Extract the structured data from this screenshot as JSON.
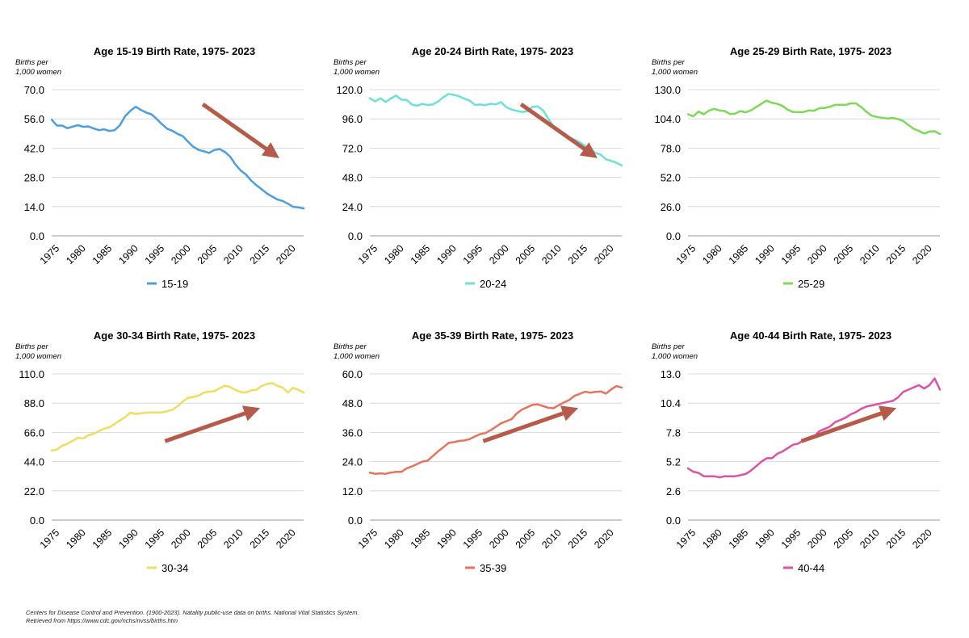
{
  "chart_data": [
    {
      "type": "line",
      "title": "Age 15-19 Birth Rate, 1975- 2023",
      "ylabel": "Births per 1,000 women",
      "ylabel_lines": [
        "Births per",
        "1,000 women"
      ],
      "xlabel": "",
      "ylim": [
        0,
        70
      ],
      "yticks": [
        "0.0",
        "14.0",
        "28.0",
        "42.0",
        "56.0",
        "70.0"
      ],
      "xticks": [
        "1975",
        "1980",
        "1985",
        "1990",
        "1995",
        "2000",
        "2005",
        "2010",
        "2015",
        "2020"
      ],
      "x_start": 1975,
      "x_end": 2023,
      "grid": true,
      "legend": "bottom-center",
      "color": "#4a9ee3",
      "trend_arrow": "down",
      "series": [
        {
          "name": "15-19",
          "x": [
            1975,
            1976,
            1977,
            1978,
            1979,
            1980,
            1981,
            1982,
            1983,
            1984,
            1985,
            1986,
            1987,
            1988,
            1989,
            1990,
            1991,
            1992,
            1993,
            1994,
            1995,
            1996,
            1997,
            1998,
            1999,
            2000,
            2001,
            2002,
            2003,
            2004,
            2005,
            2006,
            2007,
            2008,
            2009,
            2010,
            2011,
            2012,
            2013,
            2014,
            2015,
            2016,
            2017,
            2018,
            2019,
            2020,
            2021,
            2022,
            2023
          ],
          "values": [
            55.6,
            52.8,
            52.8,
            51.5,
            52.3,
            53.0,
            52.2,
            52.4,
            51.4,
            50.6,
            51.0,
            50.2,
            50.6,
            53.0,
            57.3,
            59.9,
            61.8,
            60.3,
            59.0,
            58.2,
            56.0,
            53.5,
            51.3,
            50.3,
            48.8,
            47.7,
            45.0,
            42.6,
            41.1,
            40.5,
            39.7,
            41.1,
            41.5,
            40.2,
            37.9,
            34.2,
            31.3,
            29.4,
            26.5,
            24.2,
            22.3,
            20.3,
            18.8,
            17.4,
            16.7,
            15.4,
            13.9,
            13.6,
            13.1
          ]
        }
      ]
    },
    {
      "type": "line",
      "title": "Age 20-24 Birth Rate, 1975- 2023",
      "ylabel": "Births per 1,000 women",
      "ylabel_lines": [
        "Births per",
        "1,000 women"
      ],
      "xlabel": "",
      "ylim": [
        0,
        120
      ],
      "yticks": [
        "0.0",
        "24.0",
        "48.0",
        "72.0",
        "96.0",
        "120.0"
      ],
      "xticks": [
        "1975",
        "1980",
        "1985",
        "1990",
        "1995",
        "2000",
        "2005",
        "2010",
        "2015",
        "2020"
      ],
      "x_start": 1975,
      "x_end": 2023,
      "grid": true,
      "legend": "bottom-center",
      "color": "#6fe0d3",
      "trend_arrow": "down",
      "series": [
        {
          "name": "20-24",
          "x": [
            1975,
            1976,
            1977,
            1978,
            1979,
            1980,
            1981,
            1982,
            1983,
            1984,
            1985,
            1986,
            1987,
            1988,
            1989,
            1990,
            1991,
            1992,
            1993,
            1994,
            1995,
            1996,
            1997,
            1998,
            1999,
            2000,
            2001,
            2002,
            2003,
            2004,
            2005,
            2006,
            2007,
            2008,
            2009,
            2010,
            2011,
            2012,
            2013,
            2014,
            2015,
            2016,
            2017,
            2018,
            2019,
            2020,
            2021,
            2022,
            2023
          ],
          "values": [
            113.0,
            110.3,
            112.9,
            109.9,
            112.8,
            115.1,
            111.8,
            111.6,
            107.8,
            106.8,
            108.3,
            107.4,
            107.9,
            110.2,
            113.8,
            116.5,
            115.7,
            114.6,
            112.6,
            111.1,
            107.5,
            107.8,
            107.3,
            108.4,
            107.9,
            109.7,
            105.6,
            103.6,
            102.6,
            101.7,
            102.2,
            105.9,
            106.3,
            103.0,
            96.2,
            90.0,
            85.3,
            83.1,
            80.7,
            79.0,
            76.8,
            73.8,
            71.0,
            68.0,
            66.6,
            62.8,
            61.5,
            60.0,
            57.7
          ]
        }
      ]
    },
    {
      "type": "line",
      "title": "Age 25-29 Birth Rate, 1975- 2023",
      "ylabel": "Births per 1,000 women",
      "ylabel_lines": [
        "Births per",
        "1,000 women"
      ],
      "xlabel": "",
      "ylim": [
        0,
        130
      ],
      "yticks": [
        "0.0",
        "26.0",
        "52.0",
        "78.0",
        "104.0",
        "130.0"
      ],
      "xticks": [
        "1975",
        "1980",
        "1985",
        "1990",
        "1995",
        "2000",
        "2005",
        "2010",
        "2015",
        "2020"
      ],
      "x_start": 1975,
      "x_end": 2023,
      "grid": true,
      "legend": "bottom-center",
      "color": "#7ed957",
      "trend_arrow": "",
      "series": [
        {
          "name": "25-29",
          "x": [
            1975,
            1976,
            1977,
            1978,
            1979,
            1980,
            1981,
            1982,
            1983,
            1984,
            1985,
            1986,
            1987,
            1988,
            1989,
            1990,
            1991,
            1992,
            1993,
            1994,
            1995,
            1996,
            1997,
            1998,
            1999,
            2000,
            2001,
            2002,
            2003,
            2004,
            2005,
            2006,
            2007,
            2008,
            2009,
            2010,
            2011,
            2012,
            2013,
            2014,
            2015,
            2016,
            2017,
            2018,
            2019,
            2020,
            2021,
            2022,
            2023
          ],
          "values": [
            108.2,
            106.2,
            110.5,
            108.1,
            111.4,
            112.9,
            111.5,
            111.0,
            108.3,
            108.7,
            111.0,
            109.8,
            111.6,
            114.4,
            117.6,
            120.2,
            118.2,
            117.4,
            115.5,
            112.2,
            110.1,
            110.1,
            110.1,
            111.5,
            111.2,
            113.5,
            113.8,
            114.7,
            116.4,
            116.5,
            116.4,
            117.8,
            117.8,
            114.5,
            110.3,
            106.8,
            105.7,
            105.0,
            104.3,
            104.8,
            103.9,
            102.1,
            98.5,
            95.2,
            93.4,
            90.9,
            92.7,
            93.0,
            90.5
          ]
        }
      ]
    },
    {
      "type": "line",
      "title": "Age 30-34 Birth Rate, 1975- 2023",
      "ylabel": "Births per 1,000 women",
      "ylabel_lines": [
        "Births per",
        "1,000 women"
      ],
      "xlabel": "",
      "ylim": [
        0,
        110
      ],
      "yticks": [
        "0.0",
        "22.0",
        "44.0",
        "66.0",
        "88.0",
        "110.0"
      ],
      "xticks": [
        "1975",
        "1980",
        "1985",
        "1990",
        "1995",
        "2000",
        "2005",
        "2010",
        "2015",
        "2020"
      ],
      "x_start": 1975,
      "x_end": 2023,
      "grid": true,
      "legend": "bottom-center",
      "color": "#f2dc5d",
      "trend_arrow": "up",
      "series": [
        {
          "name": "30-34",
          "x": [
            1975,
            1976,
            1977,
            1978,
            1979,
            1980,
            1981,
            1982,
            1983,
            1984,
            1985,
            1986,
            1987,
            1988,
            1989,
            1990,
            1991,
            1992,
            1993,
            1994,
            1995,
            1996,
            1997,
            1998,
            1999,
            2000,
            2001,
            2002,
            2003,
            2004,
            2005,
            2006,
            2007,
            2008,
            2009,
            2010,
            2011,
            2012,
            2013,
            2014,
            2015,
            2016,
            2017,
            2018,
            2019,
            2020,
            2021,
            2022,
            2023
          ],
          "values": [
            52.3,
            53.1,
            56.0,
            57.5,
            59.6,
            61.9,
            61.4,
            63.8,
            64.9,
            67.0,
            68.8,
            69.9,
            72.3,
            75.0,
            77.4,
            80.8,
            79.9,
            80.4,
            80.8,
            81.0,
            81.0,
            81.1,
            81.9,
            83.0,
            85.7,
            89.4,
            92.1,
            92.6,
            93.7,
            95.9,
            96.7,
            97.0,
            99.2,
            101.2,
            100.2,
            97.9,
            96.5,
            96.0,
            97.6,
            98.0,
            100.9,
            102.4,
            103.1,
            101.0,
            99.8,
            96.1,
            99.5,
            98.0,
            96.0
          ]
        }
      ]
    },
    {
      "type": "line",
      "title": "Age 35-39 Birth Rate, 1975- 2023",
      "ylabel": "Births per 1,000 women",
      "ylabel_lines": [
        "Births per",
        "1,000 women"
      ],
      "xlabel": "",
      "ylim": [
        0,
        60
      ],
      "yticks": [
        "0.0",
        "12.0",
        "24.0",
        "36.0",
        "48.0",
        "60.0"
      ],
      "xticks": [
        "1975",
        "1980",
        "1985",
        "1990",
        "1995",
        "2000",
        "2005",
        "2010",
        "2015",
        "2020"
      ],
      "x_start": 1975,
      "x_end": 2023,
      "grid": true,
      "legend": "bottom-center",
      "color": "#e8735a",
      "trend_arrow": "up",
      "series": [
        {
          "name": "35-39",
          "x": [
            1975,
            1976,
            1977,
            1978,
            1979,
            1980,
            1981,
            1982,
            1983,
            1984,
            1985,
            1986,
            1987,
            1988,
            1989,
            1990,
            1991,
            1992,
            1993,
            1994,
            1995,
            1996,
            1997,
            1998,
            1999,
            2000,
            2001,
            2002,
            2003,
            2004,
            2005,
            2006,
            2007,
            2008,
            2009,
            2010,
            2011,
            2012,
            2013,
            2014,
            2015,
            2016,
            2017,
            2018,
            2019,
            2020,
            2021,
            2022,
            2023
          ],
          "values": [
            19.5,
            19.0,
            19.2,
            19.0,
            19.5,
            19.8,
            19.8,
            21.2,
            22.0,
            23.0,
            24.0,
            24.4,
            26.3,
            28.2,
            29.9,
            31.7,
            32.0,
            32.5,
            32.7,
            33.2,
            34.3,
            35.3,
            35.7,
            36.9,
            38.3,
            39.7,
            40.6,
            41.4,
            43.8,
            45.4,
            46.3,
            47.3,
            47.5,
            46.8,
            46.1,
            45.9,
            47.2,
            48.3,
            49.3,
            51.0,
            51.8,
            52.7,
            52.3,
            52.6,
            52.8,
            51.9,
            53.7,
            55.0,
            54.4
          ]
        }
      ]
    },
    {
      "type": "line",
      "title": "Age 40-44 Birth Rate, 1975- 2023",
      "ylabel": "Births per 1,000 women",
      "ylabel_lines": [
        "Births per",
        "1,000 women"
      ],
      "xlabel": "",
      "ylim": [
        0,
        13
      ],
      "yticks": [
        "0.0",
        "2.6",
        "5.2",
        "7.8",
        "10.4",
        "13.0"
      ],
      "xticks": [
        "1975",
        "1980",
        "1985",
        "1990",
        "1995",
        "2000",
        "2005",
        "2010",
        "2015",
        "2020"
      ],
      "x_start": 1975,
      "x_end": 2023,
      "grid": true,
      "legend": "bottom-center",
      "color": "#db52a8",
      "trend_arrow": "up",
      "series": [
        {
          "name": "40-44",
          "x": [
            1975,
            1976,
            1977,
            1978,
            1979,
            1980,
            1981,
            1982,
            1983,
            1984,
            1985,
            1986,
            1987,
            1988,
            1989,
            1990,
            1991,
            1992,
            1993,
            1994,
            1995,
            1996,
            1997,
            1998,
            1999,
            2000,
            2001,
            2002,
            2003,
            2004,
            2005,
            2006,
            2007,
            2008,
            2009,
            2010,
            2011,
            2012,
            2013,
            2014,
            2015,
            2016,
            2017,
            2018,
            2019,
            2020,
            2021,
            2022,
            2023
          ],
          "values": [
            4.6,
            4.3,
            4.2,
            3.9,
            3.9,
            3.9,
            3.8,
            3.9,
            3.9,
            3.9,
            4.0,
            4.1,
            4.4,
            4.8,
            5.2,
            5.5,
            5.5,
            5.9,
            6.1,
            6.4,
            6.7,
            6.8,
            7.1,
            7.3,
            7.4,
            7.9,
            8.1,
            8.3,
            8.7,
            8.9,
            9.1,
            9.4,
            9.6,
            9.9,
            10.1,
            10.2,
            10.3,
            10.4,
            10.5,
            10.6,
            10.9,
            11.4,
            11.6,
            11.8,
            12.0,
            11.7,
            12.0,
            12.6,
            11.6
          ]
        }
      ]
    }
  ],
  "arrow_color": "#b65b4a",
  "source_lines": [
    "Centers for Disease Control and Prevention. (1900-2023). Natality public-use data on births. National Vital Statistics System.",
    "Retrieved from https://www.cdc.gov/nchs/nvss/births.htm"
  ]
}
